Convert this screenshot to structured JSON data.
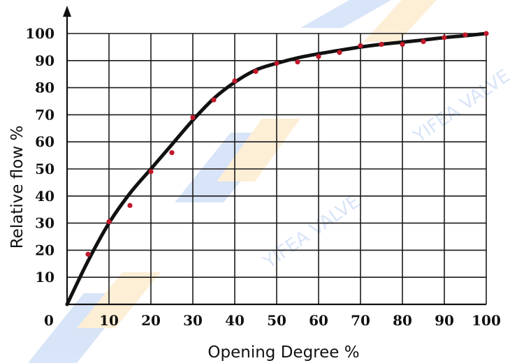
{
  "chart_data": {
    "type": "line",
    "title": "",
    "xlabel": "Opening Degree %",
    "ylabel": "Relative flow %",
    "xlim": [
      0,
      100
    ],
    "ylim": [
      0,
      100
    ],
    "origin_label": "0",
    "x_ticks": [
      "10",
      "20",
      "30",
      "40",
      "50",
      "60",
      "70",
      "80",
      "90",
      "100"
    ],
    "y_ticks": [
      "10",
      "20",
      "30",
      "40",
      "50",
      "60",
      "70",
      "80",
      "90",
      "100"
    ],
    "grid": true,
    "series": [
      {
        "kind": "curve",
        "color": "#111111",
        "x": [
          0,
          5,
          10,
          15,
          20,
          25,
          30,
          35,
          40,
          45,
          50,
          55,
          60,
          65,
          70,
          75,
          80,
          85,
          90,
          95,
          100
        ],
        "y": [
          0,
          16,
          30,
          41,
          50,
          59,
          68,
          76,
          82,
          86.5,
          89,
          91,
          92.5,
          93.8,
          95,
          96,
          96.8,
          97.6,
          98.5,
          99.2,
          100
        ]
      },
      {
        "kind": "points",
        "color": "#c0182a",
        "x": [
          5,
          10,
          15,
          20,
          25,
          30,
          35,
          40,
          45,
          50,
          55,
          60,
          65,
          70,
          75,
          80,
          85,
          90,
          95,
          100
        ],
        "y": [
          18.5,
          30.5,
          36.5,
          49,
          56,
          69,
          75.5,
          82.5,
          86,
          89,
          89.5,
          91.5,
          93,
          95.5,
          96,
          96,
          97,
          98.5,
          99.5,
          100
        ]
      }
    ]
  },
  "watermark": {
    "text": "YIFEA VALVE",
    "colors": [
      "#2f6fd6",
      "#f5a623"
    ]
  }
}
